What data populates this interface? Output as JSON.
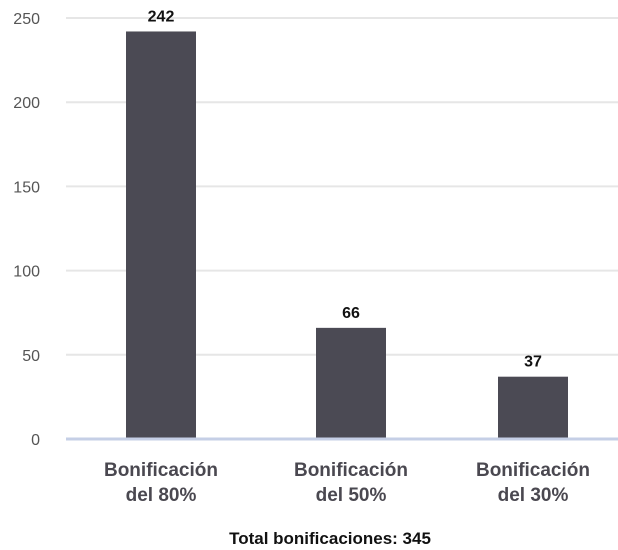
{
  "chart_data": {
    "type": "bar",
    "categories": [
      [
        "Bonificación",
        "del 80%"
      ],
      [
        "Bonificación",
        "del 50%"
      ],
      [
        "Bonificación",
        "del 30%"
      ]
    ],
    "values": [
      242,
      66,
      37
    ],
    "data_labels": [
      "242",
      "66",
      "37"
    ],
    "yticks": [
      "0",
      "50",
      "100",
      "150",
      "200",
      "250"
    ],
    "ylim": [
      0,
      250
    ],
    "grid": true,
    "bar_color": "#4b4a54",
    "gridline_color": "#e6e6e6",
    "baseline_color": "#c5cfe6",
    "footer": "Total bonificaciones: 345"
  }
}
